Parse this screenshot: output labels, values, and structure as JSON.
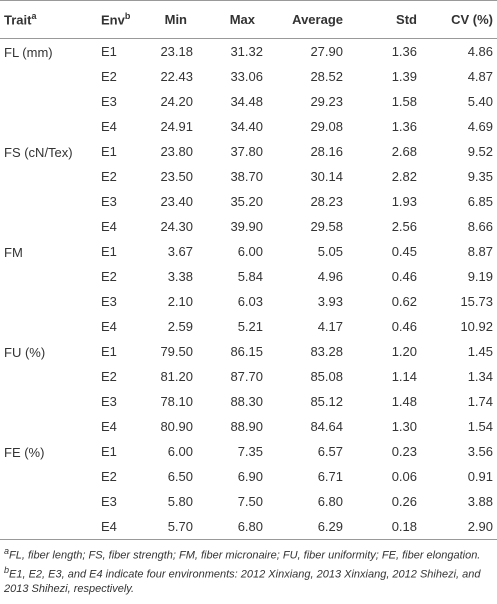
{
  "table": {
    "columns": [
      {
        "label": "Trait",
        "sup": "a"
      },
      {
        "label": "Env",
        "sup": "b"
      },
      {
        "label": "Min"
      },
      {
        "label": "Max"
      },
      {
        "label": "Average"
      },
      {
        "label": "Std"
      },
      {
        "label": "CV (%)"
      }
    ],
    "groups": [
      {
        "trait": "FL (mm)",
        "rows": [
          [
            "E1",
            "23.18",
            "31.32",
            "27.90",
            "1.36",
            "4.86"
          ],
          [
            "E2",
            "22.43",
            "33.06",
            "28.52",
            "1.39",
            "4.87"
          ],
          [
            "E3",
            "24.20",
            "34.48",
            "29.23",
            "1.58",
            "5.40"
          ],
          [
            "E4",
            "24.91",
            "34.40",
            "29.08",
            "1.36",
            "4.69"
          ]
        ]
      },
      {
        "trait": "FS (cN/Tex)",
        "rows": [
          [
            "E1",
            "23.80",
            "37.80",
            "28.16",
            "2.68",
            "9.52"
          ],
          [
            "E2",
            "23.50",
            "38.70",
            "30.14",
            "2.82",
            "9.35"
          ],
          [
            "E3",
            "23.40",
            "35.20",
            "28.23",
            "1.93",
            "6.85"
          ],
          [
            "E4",
            "24.30",
            "39.90",
            "29.58",
            "2.56",
            "8.66"
          ]
        ]
      },
      {
        "trait": "FM",
        "rows": [
          [
            "E1",
            "3.67",
            "6.00",
            "5.05",
            "0.45",
            "8.87"
          ],
          [
            "E2",
            "3.38",
            "5.84",
            "4.96",
            "0.46",
            "9.19"
          ],
          [
            "E3",
            "2.10",
            "6.03",
            "3.93",
            "0.62",
            "15.73"
          ],
          [
            "E4",
            "2.59",
            "5.21",
            "4.17",
            "0.46",
            "10.92"
          ]
        ]
      },
      {
        "trait": "FU (%)",
        "rows": [
          [
            "E1",
            "79.50",
            "86.15",
            "83.28",
            "1.20",
            "1.45"
          ],
          [
            "E2",
            "81.20",
            "87.70",
            "85.08",
            "1.14",
            "1.34"
          ],
          [
            "E3",
            "78.10",
            "88.30",
            "85.12",
            "1.48",
            "1.74"
          ],
          [
            "E4",
            "80.90",
            "88.90",
            "84.64",
            "1.30",
            "1.54"
          ]
        ]
      },
      {
        "trait": "FE (%)",
        "rows": [
          [
            "E1",
            "6.00",
            "7.35",
            "6.57",
            "0.23",
            "3.56"
          ],
          [
            "E2",
            "6.50",
            "6.90",
            "6.71",
            "0.06",
            "0.91"
          ],
          [
            "E3",
            "5.80",
            "7.50",
            "6.80",
            "0.26",
            "3.88"
          ],
          [
            "E4",
            "5.70",
            "6.80",
            "6.29",
            "0.18",
            "2.90"
          ]
        ]
      }
    ],
    "footnotes": [
      {
        "mark": "a",
        "text": "FL, fiber length; FS, fiber strength; FM, fiber micronaire; FU, fiber uniformity; FE, fiber elongation."
      },
      {
        "mark": "b",
        "text": "E1, E2, E3, and E4 indicate four environments: 2012 Xinxiang, 2013 Xinxiang, 2012 Shihezi, and 2013 Shihezi, respectively."
      }
    ]
  }
}
